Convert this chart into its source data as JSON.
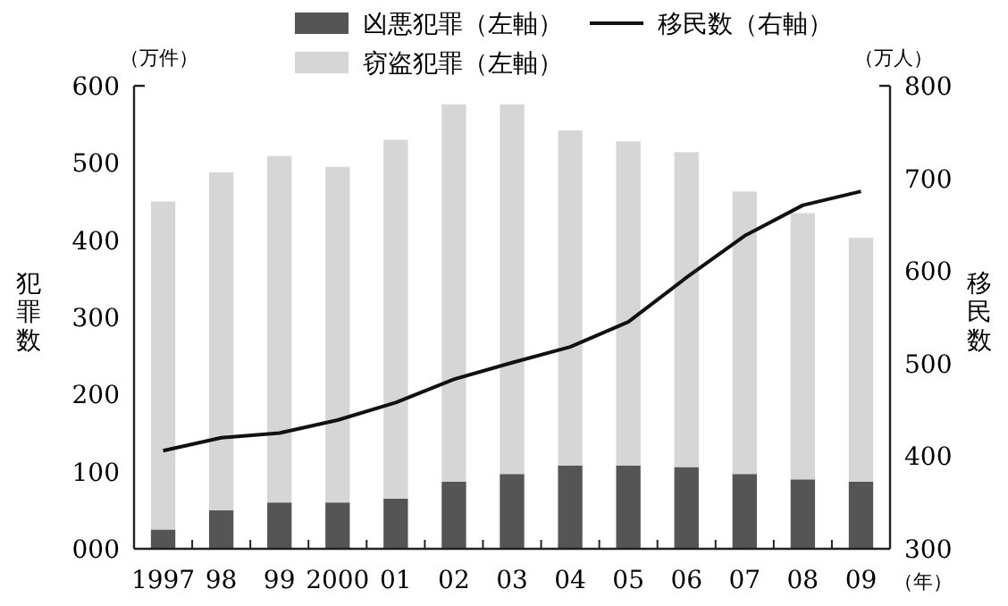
{
  "chart_data": {
    "type": "bar",
    "stacked": true,
    "legend": "top",
    "grid": false,
    "ylabel": "犯罪数",
    "y2label": "移民数",
    "annotations": [
      "（万件）",
      "（万人）",
      "（年）"
    ],
    "categories": [
      "1997",
      "98",
      "99",
      "2000",
      "01",
      "02",
      "03",
      "04",
      "05",
      "06",
      "07",
      "08",
      "09"
    ],
    "series": [
      {
        "name": "凶悪犯罪（左軸）",
        "color": "#555555",
        "values": [
          25,
          50,
          60,
          60,
          65,
          87,
          97,
          108,
          108,
          106,
          97,
          90,
          87
        ]
      },
      {
        "name": "窃盗犯罪（左軸）",
        "color": "#d6d6d6",
        "values": [
          425,
          438,
          449,
          435,
          465,
          489,
          479,
          434,
          420,
          408,
          366,
          345,
          316
        ]
      },
      {
        "name": "移民数（右軸）",
        "type": "line",
        "axis": "y2",
        "color": "#111111",
        "marker": "none",
        "values": [
          406,
          420,
          425,
          439,
          458,
          483,
          501,
          518,
          545,
          593,
          638,
          671,
          686
        ]
      }
    ],
    "ylim": [
      0,
      600
    ],
    "yticks": [
      {
        "value": 0,
        "label": "000"
      },
      100,
      200,
      300,
      400,
      500,
      600
    ],
    "y2lim": [
      300,
      800
    ],
    "y2ticks": [
      300,
      400,
      500,
      600,
      700,
      800
    ]
  }
}
